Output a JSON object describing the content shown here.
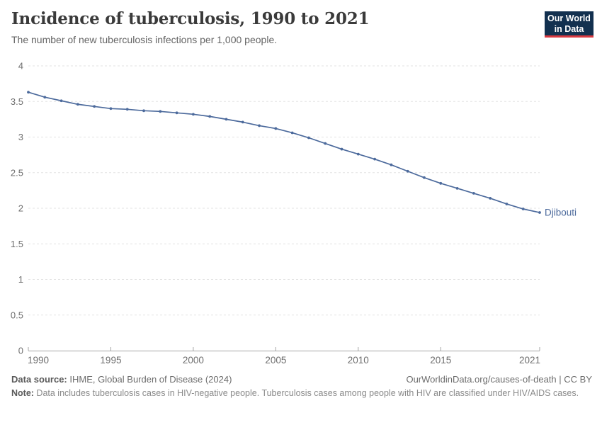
{
  "logo": {
    "line1": "Our World",
    "line2": "in Data",
    "bg_color": "#12304F",
    "accent_color": "#D93A41"
  },
  "chart_data": {
    "type": "line",
    "title": "Incidence of tuberculosis, 1990 to 2021",
    "subtitle": "The number of new tuberculosis infections per 1,000 people.",
    "x": [
      1990,
      1991,
      1992,
      1993,
      1994,
      1995,
      1996,
      1997,
      1998,
      1999,
      2000,
      2001,
      2002,
      2003,
      2004,
      2005,
      2006,
      2007,
      2008,
      2009,
      2010,
      2011,
      2012,
      2013,
      2014,
      2015,
      2016,
      2017,
      2018,
      2019,
      2020,
      2021
    ],
    "series": [
      {
        "name": "Djibouti",
        "color": "#4C6A9C",
        "values": [
          3.63,
          3.56,
          3.51,
          3.46,
          3.43,
          3.4,
          3.39,
          3.37,
          3.36,
          3.34,
          3.32,
          3.29,
          3.25,
          3.21,
          3.16,
          3.12,
          3.06,
          2.99,
          2.91,
          2.83,
          2.76,
          2.69,
          2.61,
          2.52,
          2.43,
          2.35,
          2.28,
          2.21,
          2.14,
          2.06,
          1.99,
          1.94
        ]
      }
    ],
    "ylim": [
      0,
      4
    ],
    "yticks": [
      0,
      0.5,
      1,
      1.5,
      2,
      2.5,
      3,
      3.5,
      4
    ],
    "xticks": [
      1990,
      1995,
      2000,
      2005,
      2010,
      2015,
      2021
    ],
    "xlabel": "",
    "ylabel": "",
    "grid": "horizontal-dashed",
    "legend": "end-of-line-label",
    "axis_text_color": "#6e6e6e",
    "gridline_color": "#e3e3e3",
    "axis_line_color": "#a6a6a6"
  },
  "footer": {
    "source_label": "Data source:",
    "source_text": " IHME, Global Burden of Disease (2024)",
    "link_text": "OurWorldinData.org/causes-of-death | CC BY",
    "note_label": "Note:",
    "note_text": " Data includes tuberculosis cases in HIV-negative people. Tuberculosis cases among people with HIV are classified under HIV/AIDS cases."
  }
}
